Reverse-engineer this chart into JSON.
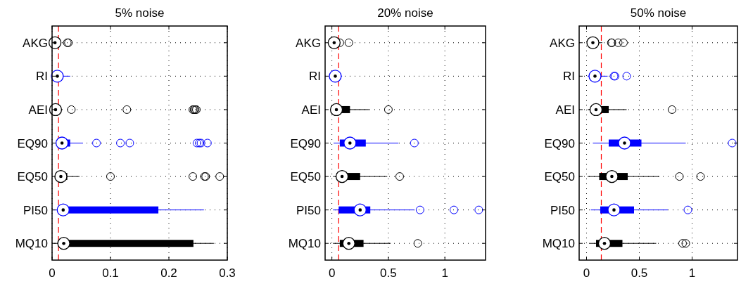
{
  "chart_data": [
    {
      "type": "box",
      "title": "5% noise",
      "orientation": "horizontal",
      "categories": [
        "AKG",
        "RI",
        "AEI",
        "EQ90",
        "EQ50",
        "PI50",
        "MQ10"
      ],
      "colors": [
        "#000000",
        "#0000ff",
        "#000000",
        "#0000ff",
        "#000000",
        "#0000ff",
        "#000000"
      ],
      "xlim": [
        0,
        0.3
      ],
      "xticks": [
        0,
        0.1,
        0.2,
        0.3
      ],
      "grid": true,
      "boxes": [
        {
          "low": 0.002,
          "q1": 0.003,
          "median": 0.005,
          "q3": 0.007,
          "high": 0.01,
          "outliers": [
            0.026,
            0.028
          ]
        },
        {
          "low": 0.003,
          "q1": 0.007,
          "median": 0.009,
          "q3": 0.012,
          "high": 0.031
        },
        {
          "low": 0.002,
          "q1": 0.004,
          "median": 0.006,
          "q3": 0.008,
          "high": 0.011,
          "outliers": [
            0.033,
            0.128,
            0.241,
            0.243,
            0.245,
            0.247
          ]
        },
        {
          "low": 0.008,
          "q1": 0.012,
          "median": 0.017,
          "q3": 0.031,
          "high": 0.053,
          "outliers": [
            0.076,
            0.117,
            0.133,
            0.248,
            0.252,
            0.255,
            0.266
          ]
        },
        {
          "low": 0.005,
          "q1": 0.01,
          "median": 0.015,
          "q3": 0.026,
          "high": 0.047,
          "outliers": [
            0.1,
            0.241,
            0.261,
            0.263,
            0.287
          ]
        },
        {
          "low": 0.002,
          "q1": 0.015,
          "median": 0.019,
          "q3": 0.182,
          "high": 0.26
        },
        {
          "low": 0.003,
          "q1": 0.016,
          "median": 0.02,
          "q3": 0.242,
          "high": 0.277
        }
      ],
      "ref_lines": [
        {
          "axis": "x",
          "value": 0.011,
          "color": "#ff0000",
          "line_style": "dashed"
        }
      ]
    },
    {
      "type": "box",
      "title": "20% noise",
      "orientation": "horizontal",
      "categories": [
        "AKG",
        "RI",
        "AEI",
        "EQ90",
        "EQ50",
        "PI50",
        "MQ10"
      ],
      "colors": [
        "#000000",
        "#0000ff",
        "#000000",
        "#0000ff",
        "#000000",
        "#0000ff",
        "#000000"
      ],
      "xlim": [
        -0.06,
        1.36
      ],
      "xticks": [
        0,
        0.5,
        1
      ],
      "grid": true,
      "boxes": [
        {
          "low": 0,
          "q1": 0.01,
          "median": 0.02,
          "q3": 0.03,
          "high": 0.05,
          "outliers": [
            0.07,
            0.15
          ]
        },
        {
          "low": 0,
          "q1": 0.02,
          "median": 0.03,
          "q3": 0.05,
          "high": 0.09
        },
        {
          "low": 0.01,
          "q1": 0.02,
          "median": 0.04,
          "q3": 0.16,
          "high": 0.33,
          "outliers": [
            0.5
          ]
        },
        {
          "low": 0.015,
          "q1": 0.07,
          "median": 0.16,
          "q3": 0.3,
          "high": 0.59,
          "outliers": [
            0.73
          ]
        },
        {
          "low": 0.01,
          "q1": 0.04,
          "median": 0.09,
          "q3": 0.25,
          "high": 0.49,
          "outliers": [
            0.6
          ]
        },
        {
          "low": 0.01,
          "q1": 0.06,
          "median": 0.25,
          "q3": 0.34,
          "high": 0.73,
          "outliers": [
            0.78,
            1.08,
            1.3
          ]
        },
        {
          "low": 0.01,
          "q1": 0.07,
          "median": 0.15,
          "q3": 0.28,
          "high": 0.52,
          "outliers": [
            0.76
          ]
        }
      ],
      "ref_lines": [
        {
          "axis": "x",
          "value": 0.06,
          "color": "#ff0000",
          "line_style": "dashed"
        }
      ]
    },
    {
      "type": "box",
      "title": "50% noise",
      "orientation": "horizontal",
      "categories": [
        "AKG",
        "RI",
        "AEI",
        "EQ90",
        "EQ50",
        "PI50",
        "MQ10"
      ],
      "colors": [
        "#000000",
        "#0000ff",
        "#000000",
        "#0000ff",
        "#000000",
        "#0000ff",
        "#000000"
      ],
      "xlim": [
        -0.07,
        1.43
      ],
      "xticks": [
        0,
        0.5,
        1
      ],
      "grid": true,
      "boxes": [
        {
          "low": 0.02,
          "q1": 0.04,
          "median": 0.06,
          "q3": 0.09,
          "high": 0.15,
          "outliers": [
            0.235,
            0.24,
            0.3,
            0.35
          ]
        },
        {
          "low": 0.01,
          "q1": 0.05,
          "median": 0.08,
          "q3": 0.12,
          "high": 0.2,
          "outliers": [
            0.26,
            0.27,
            0.38
          ]
        },
        {
          "low": 0.01,
          "q1": 0.04,
          "median": 0.09,
          "q3": 0.21,
          "high": 0.38,
          "outliers": [
            0.81
          ]
        },
        {
          "low": 0.06,
          "q1": 0.21,
          "median": 0.36,
          "q3": 0.52,
          "high": 0.94,
          "outliers": [
            1.38
          ]
        },
        {
          "low": 0.01,
          "q1": 0.12,
          "median": 0.24,
          "q3": 0.39,
          "high": 0.69,
          "outliers": [
            0.88,
            1.08
          ]
        },
        {
          "low": 0.04,
          "q1": 0.13,
          "median": 0.26,
          "q3": 0.45,
          "high": 0.77,
          "outliers": [
            0.96
          ]
        },
        {
          "low": 0.03,
          "q1": 0.09,
          "median": 0.17,
          "q3": 0.34,
          "high": 0.66,
          "outliers": [
            0.91,
            0.94
          ]
        }
      ],
      "ref_lines": [
        {
          "axis": "x",
          "value": 0.14,
          "color": "#ff0000",
          "line_style": "dashed"
        }
      ]
    }
  ]
}
